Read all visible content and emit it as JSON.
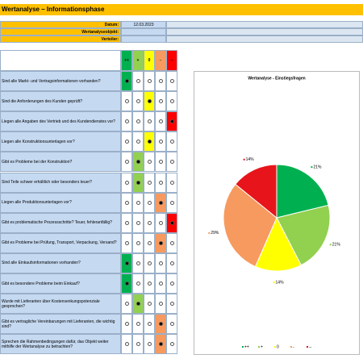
{
  "header": {
    "title": "Wertanalyse – Informationsphase",
    "fields": [
      {
        "label": "Datum:",
        "value": "12.03.2023"
      },
      {
        "label": "Wertanalyseobjekt:"
      },
      {
        "label": "Verteiler:"
      }
    ]
  },
  "columns": [
    {
      "label": "++",
      "color": "#00b050"
    },
    {
      "label": "+",
      "color": "#92d050"
    },
    {
      "label": "0",
      "color": "#ffff00"
    },
    {
      "label": "-",
      "color": "#f79a5f"
    },
    {
      "label": "--",
      "color": "#ff0000"
    }
  ],
  "rows": [
    {
      "question": "Sind alle Markt- und Vertragsinformationen vorhanden?",
      "selected": 0
    },
    {
      "question": "Sind die Anforderungen des Kunden geprüft?",
      "selected": 2
    },
    {
      "question": "Liegen alle Angaben des Vertrieb und des Kundendienstes vor?",
      "selected": 4
    },
    {
      "question": "Liegen alle Konstruktionsunterlagen vor?",
      "selected": 2
    },
    {
      "question": "Gibt es Probleme bei der Konstruktion?",
      "selected": 1
    },
    {
      "question": "Sind Teile schwer erhältlich oder besonders teuer?",
      "selected": 1
    },
    {
      "question": "Liegen alle Produktionsunterlagen vor?",
      "selected": 3
    },
    {
      "question": "Gibt es problematische Prozessschritte? Teuer, fehleranfällig?",
      "selected": 4
    },
    {
      "question": "Gibt es Probleme bei Prüfung, Transport, Verpackung, Versand?",
      "selected": 3
    },
    {
      "question": "Sind alle Einkaufsinformationen vorhanden?",
      "selected": 0
    },
    {
      "question": "Gibt es besondere Probleme beim Einkauf?",
      "selected": 0
    },
    {
      "question": "Wurde mit Lieferanten über Kostensenkungspotenziale gesprochen?",
      "selected": 1
    },
    {
      "question": "Gibt es vertragliche Vereinbarungen mit Lieferanten, die wichtig sind?",
      "selected": 3
    },
    {
      "question": "Sprechen die Rahmenbedingungen dafür, das Objekt weiter mithilfe der Wertanalyse zu betrachten?",
      "selected": 3
    }
  ],
  "chart_data": {
    "type": "pie",
    "title": "Wertanalyse - Einstiegsfragen",
    "categories": [
      "++",
      "+",
      "0",
      "-",
      "--"
    ],
    "values": [
      21,
      21,
      14,
      29,
      14
    ],
    "value_labels": [
      "21%",
      "21%",
      "14%",
      "29%",
      "14%"
    ],
    "colors": [
      "#00b050",
      "#92d050",
      "#ffff00",
      "#f79a5f",
      "#e8141b"
    ]
  }
}
